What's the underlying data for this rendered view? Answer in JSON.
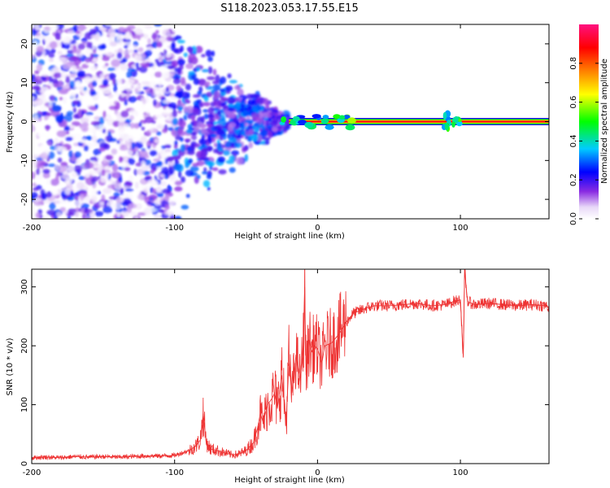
{
  "title": "S118.2023.053.17.55.E15",
  "chart_data": [
    {
      "type": "heatmap",
      "xlabel": "Height of straight line (km)",
      "ylabel": "Frequency (Hz)",
      "xlim": [
        -200,
        162
      ],
      "ylim": [
        -25,
        25
      ],
      "xticks": [
        -200,
        -100,
        0,
        100
      ],
      "xtick_labels": [
        "-200",
        "-100",
        "0",
        "100"
      ],
      "yticks": [
        -20,
        -10,
        0,
        10,
        20
      ],
      "ytick_labels": [
        "-20",
        "-10",
        "0",
        "10",
        "20"
      ],
      "colorbar": {
        "label": "Normalized spectral amplitude",
        "ticks": [
          0.0,
          0.2,
          0.4,
          0.6,
          0.8
        ],
        "tick_labels": [
          "0.0",
          "0.2",
          "0.4",
          "0.6",
          "0.8"
        ],
        "range": [
          0,
          1
        ],
        "colors": [
          "#ffffff",
          "#e8d8f8",
          "#8a2be2",
          "#0000ff",
          "#00ccff",
          "#00ff00",
          "#ffff00",
          "#ff8000",
          "#ff0000",
          "#ff1080"
        ]
      },
      "regions": [
        {
          "name": "noise scatter",
          "x": [
            -200,
            -100
          ],
          "freq": [
            -25,
            25
          ],
          "amplitude": [
            0.0,
            0.3
          ]
        },
        {
          "name": "converging scatter",
          "x": [
            -100,
            -20
          ],
          "freq": [
            -12,
            12
          ],
          "amplitude": [
            0.1,
            0.35
          ]
        },
        {
          "name": "carrier",
          "x": [
            -20,
            162
          ],
          "freq": [
            0,
            0
          ],
          "amplitude": [
            0.8,
            1.0
          ]
        },
        {
          "name": "disturbance",
          "x": [
            88,
            100
          ],
          "freq": [
            -2,
            2
          ],
          "amplitude": [
            0.3,
            0.6
          ]
        }
      ],
      "grid": false
    },
    {
      "type": "line",
      "xlabel": "Height of straight line (km)",
      "ylabel": "SNR (10 * v/v)",
      "xlim": [
        -200,
        162
      ],
      "ylim": [
        0,
        330
      ],
      "xticks": [
        -200,
        -100,
        0,
        100
      ],
      "xtick_labels": [
        "-200",
        "-100",
        "0",
        "100"
      ],
      "yticks": [
        0,
        100,
        200,
        300
      ],
      "ytick_labels": [
        "0",
        "100",
        "200",
        "300"
      ],
      "color": "#ee3333",
      "series": [
        {
          "x": [
            -200,
            -190,
            -180,
            -170,
            -160,
            -150,
            -140,
            -130,
            -120,
            -110,
            -100,
            -95,
            -90,
            -85,
            -82,
            -80,
            -78,
            -75,
            -70,
            -65,
            -60,
            -55,
            -50,
            -45,
            -42,
            -40,
            -38,
            -35,
            -32,
            -30,
            -28,
            -25,
            -22,
            -20,
            -18,
            -15,
            -12,
            -10,
            -9,
            -8,
            -6,
            -4,
            -2,
            0,
            3,
            5,
            10,
            15,
            20,
            25,
            30,
            35,
            40,
            50,
            60,
            70,
            80,
            90,
            95,
            100,
            102,
            103,
            104,
            105,
            110,
            120,
            130,
            140,
            150,
            160,
            162
          ],
          "y": [
            10,
            11,
            10,
            12,
            11,
            12,
            11,
            12,
            13,
            13,
            14,
            18,
            22,
            30,
            40,
            85,
            38,
            25,
            22,
            18,
            15,
            16,
            22,
            35,
            60,
            85,
            70,
            100,
            110,
            120,
            95,
            150,
            70,
            170,
            120,
            185,
            140,
            200,
            300,
            150,
            210,
            190,
            200,
            195,
            170,
            200,
            205,
            220,
            240,
            255,
            260,
            265,
            268,
            268,
            270,
            272,
            268,
            270,
            275,
            278,
            180,
            330,
            300,
            275,
            270,
            272,
            270,
            268,
            270,
            268,
            265
          ]
        }
      ],
      "grid": false
    }
  ]
}
